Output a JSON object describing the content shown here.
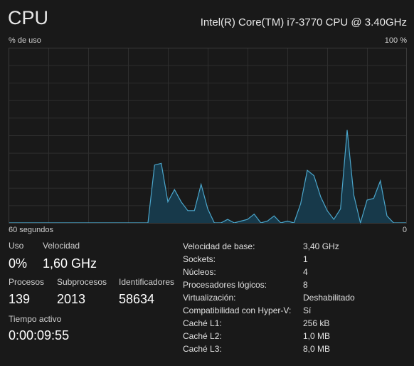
{
  "header": {
    "title": "CPU",
    "subtitle": "Intel(R) Core(TM) i7-3770 CPU @ 3.40GHz"
  },
  "chart_data": {
    "type": "line",
    "y_label": "% de uso",
    "y_label_max": "100 %",
    "x_label_left": "60 segundos",
    "x_label_right": "0",
    "ylim": [
      0,
      100
    ],
    "grid": true,
    "color": "#4ba6cb",
    "fill": "#17394a",
    "values": [
      0,
      0,
      0,
      0,
      0,
      0,
      0,
      0,
      0,
      0,
      0,
      0,
      0,
      0,
      0,
      0,
      0,
      0,
      0,
      0,
      0,
      0,
      33,
      34,
      12,
      19,
      12,
      7,
      7,
      22,
      8,
      0,
      0,
      2,
      0,
      1,
      2,
      5,
      0,
      1,
      4,
      0,
      1,
      0,
      11,
      30,
      27,
      15,
      7,
      2,
      8,
      53,
      16,
      0,
      13,
      14,
      24,
      4,
      0,
      0,
      0
    ]
  },
  "stats": [
    [
      {
        "label": "Uso",
        "value": "0%"
      },
      {
        "label": "Velocidad",
        "value": "1,60 GHz"
      }
    ],
    [
      {
        "label": "Procesos",
        "value": "139"
      },
      {
        "label": "Subprocesos",
        "value": "2013"
      },
      {
        "label": "Identificadores",
        "value": "58634"
      }
    ],
    [
      {
        "label": "Tiempo activo",
        "value": "0:00:09:55"
      }
    ]
  ],
  "details": [
    [
      "Velocidad de base:",
      "3,40 GHz"
    ],
    [
      "Sockets:",
      "1"
    ],
    [
      "Núcleos:",
      "4"
    ],
    [
      "Procesadores lógicos:",
      "8"
    ],
    [
      "Virtualización:",
      "Deshabilitado"
    ],
    [
      "Compatibilidad con Hyper-V:",
      "Sí"
    ],
    [
      "Caché L1:",
      "256 kB"
    ],
    [
      "Caché L2:",
      "1,0 MB"
    ],
    [
      "Caché L3:",
      "8,0 MB"
    ]
  ]
}
